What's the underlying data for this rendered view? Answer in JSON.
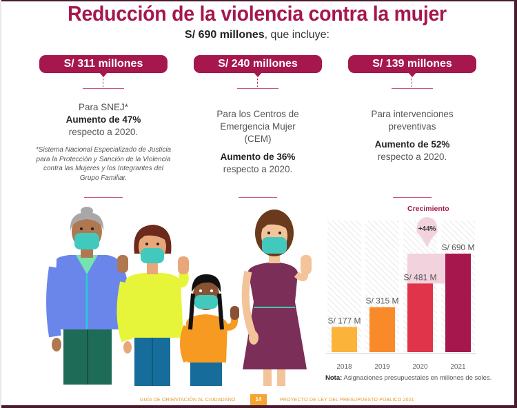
{
  "header": {
    "title": "Reducción de la violencia contra la mujer",
    "subtitle_bold": "S/ 690 millones",
    "subtitle_rest": ", que incluye:"
  },
  "columns": [
    {
      "amount": "S/ 311 millones",
      "line1": "Para SNEJ*",
      "line2": "Aumento de 47%",
      "line3": "respecto a 2020.",
      "footnote": "*Sistema Nacional Especializado de Justicia para la Protección y Sanción de la Violencia contra las Mujeres y los Integrantes del Grupo Familiar."
    },
    {
      "amount": "S/ 240 millones",
      "line1": "Para los Centros de Emergencia Mujer (CEM)",
      "line2": "Aumento de 36%",
      "line3": "respecto a 2020."
    },
    {
      "amount": "S/ 139 millones",
      "line1": "Para intervenciones preventivas",
      "line2": "Aumento de 52%",
      "line3": "respecto a 2020."
    }
  ],
  "illustration": {
    "people": [
      "elderly-woman",
      "woman-yellow-sweater",
      "girl-orange-shirt",
      "woman-purple-dress"
    ]
  },
  "colors": {
    "accent": "#a5174d",
    "bar_2018": "#fbb33a",
    "bar_2019": "#f98a2a",
    "bar_2020": "#e0344b",
    "bar_2021": "#a5174d",
    "growth_fill": "#f1d2dd"
  },
  "chart_data": {
    "type": "bar",
    "title": "",
    "categories": [
      "2018",
      "2019",
      "2020",
      "2021"
    ],
    "values": [
      177,
      315,
      481,
      690
    ],
    "data_labels": [
      "S/ 177 M",
      "S/ 315 M",
      "S/ 481 M",
      "S/ 690 M"
    ],
    "xlabel": "",
    "ylabel": "",
    "ylim": [
      0,
      920
    ],
    "grid": false,
    "annotation": {
      "label": "Crecimiento",
      "value": "+44%",
      "from": "2020",
      "to": "2021"
    },
    "note_bold": "Nota:",
    "note": " Asignaciones presupuestales en millones de soles."
  },
  "footer": {
    "left": "GUÍA DE ORIENTACIÓN AL CIUDADANO",
    "page": "14",
    "right": "PROYECTO DE LEY DEL PRESUPUESTO PÚBLICO 2021"
  }
}
